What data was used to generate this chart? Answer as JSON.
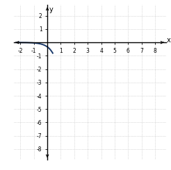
{
  "title": "",
  "xlabel": "x",
  "ylabel": "y",
  "xlim": [
    -2.5,
    8.8
  ],
  "ylim": [
    -8.8,
    2.8
  ],
  "xticks": [
    -2,
    -1,
    1,
    2,
    3,
    4,
    5,
    6,
    7,
    8
  ],
  "yticks": [
    -8,
    -7,
    -6,
    -5,
    -4,
    -3,
    -2,
    -1,
    1,
    2
  ],
  "curve_color": "#1a3a6b",
  "curve_linewidth": 1.4,
  "grid_color": "#bbbbbb",
  "background_color": "#ffffff",
  "func_a": -0.3333,
  "func_base": 9
}
